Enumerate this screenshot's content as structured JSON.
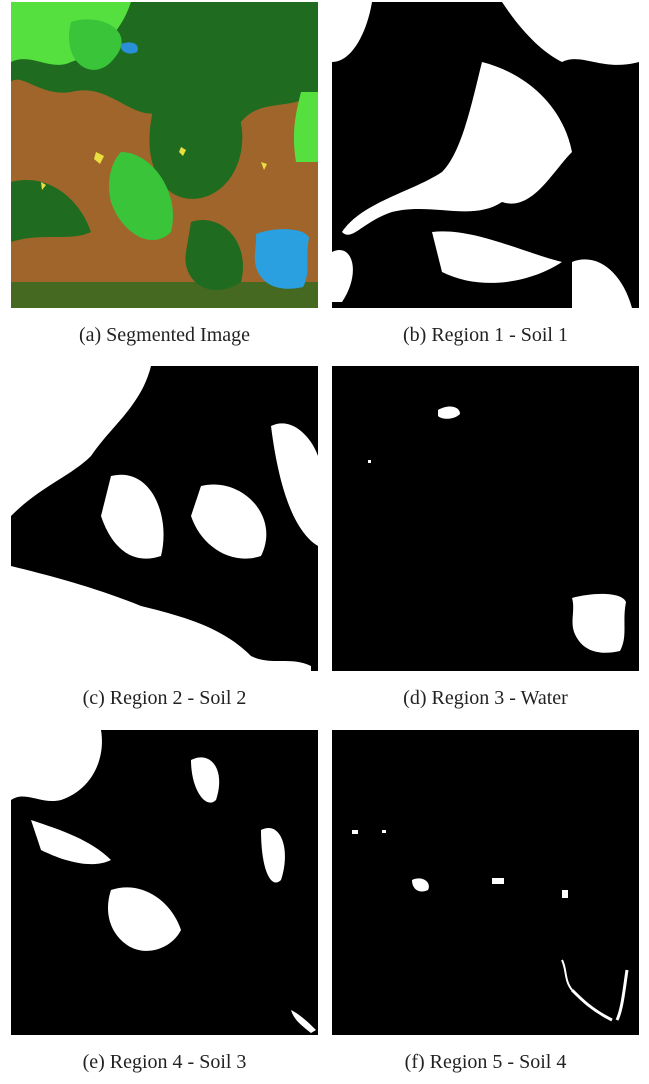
{
  "panels": [
    {
      "caption": "(a) Segmented Image"
    },
    {
      "caption": "(b) Region 1 - Soil 1"
    },
    {
      "caption": "(c) Region 2 - Soil 2"
    },
    {
      "caption": "(d) Region 3 - Water"
    },
    {
      "caption": "(e) Region 4 - Soil 3"
    },
    {
      "caption": "(f) Region 5 - Soil 4"
    }
  ]
}
